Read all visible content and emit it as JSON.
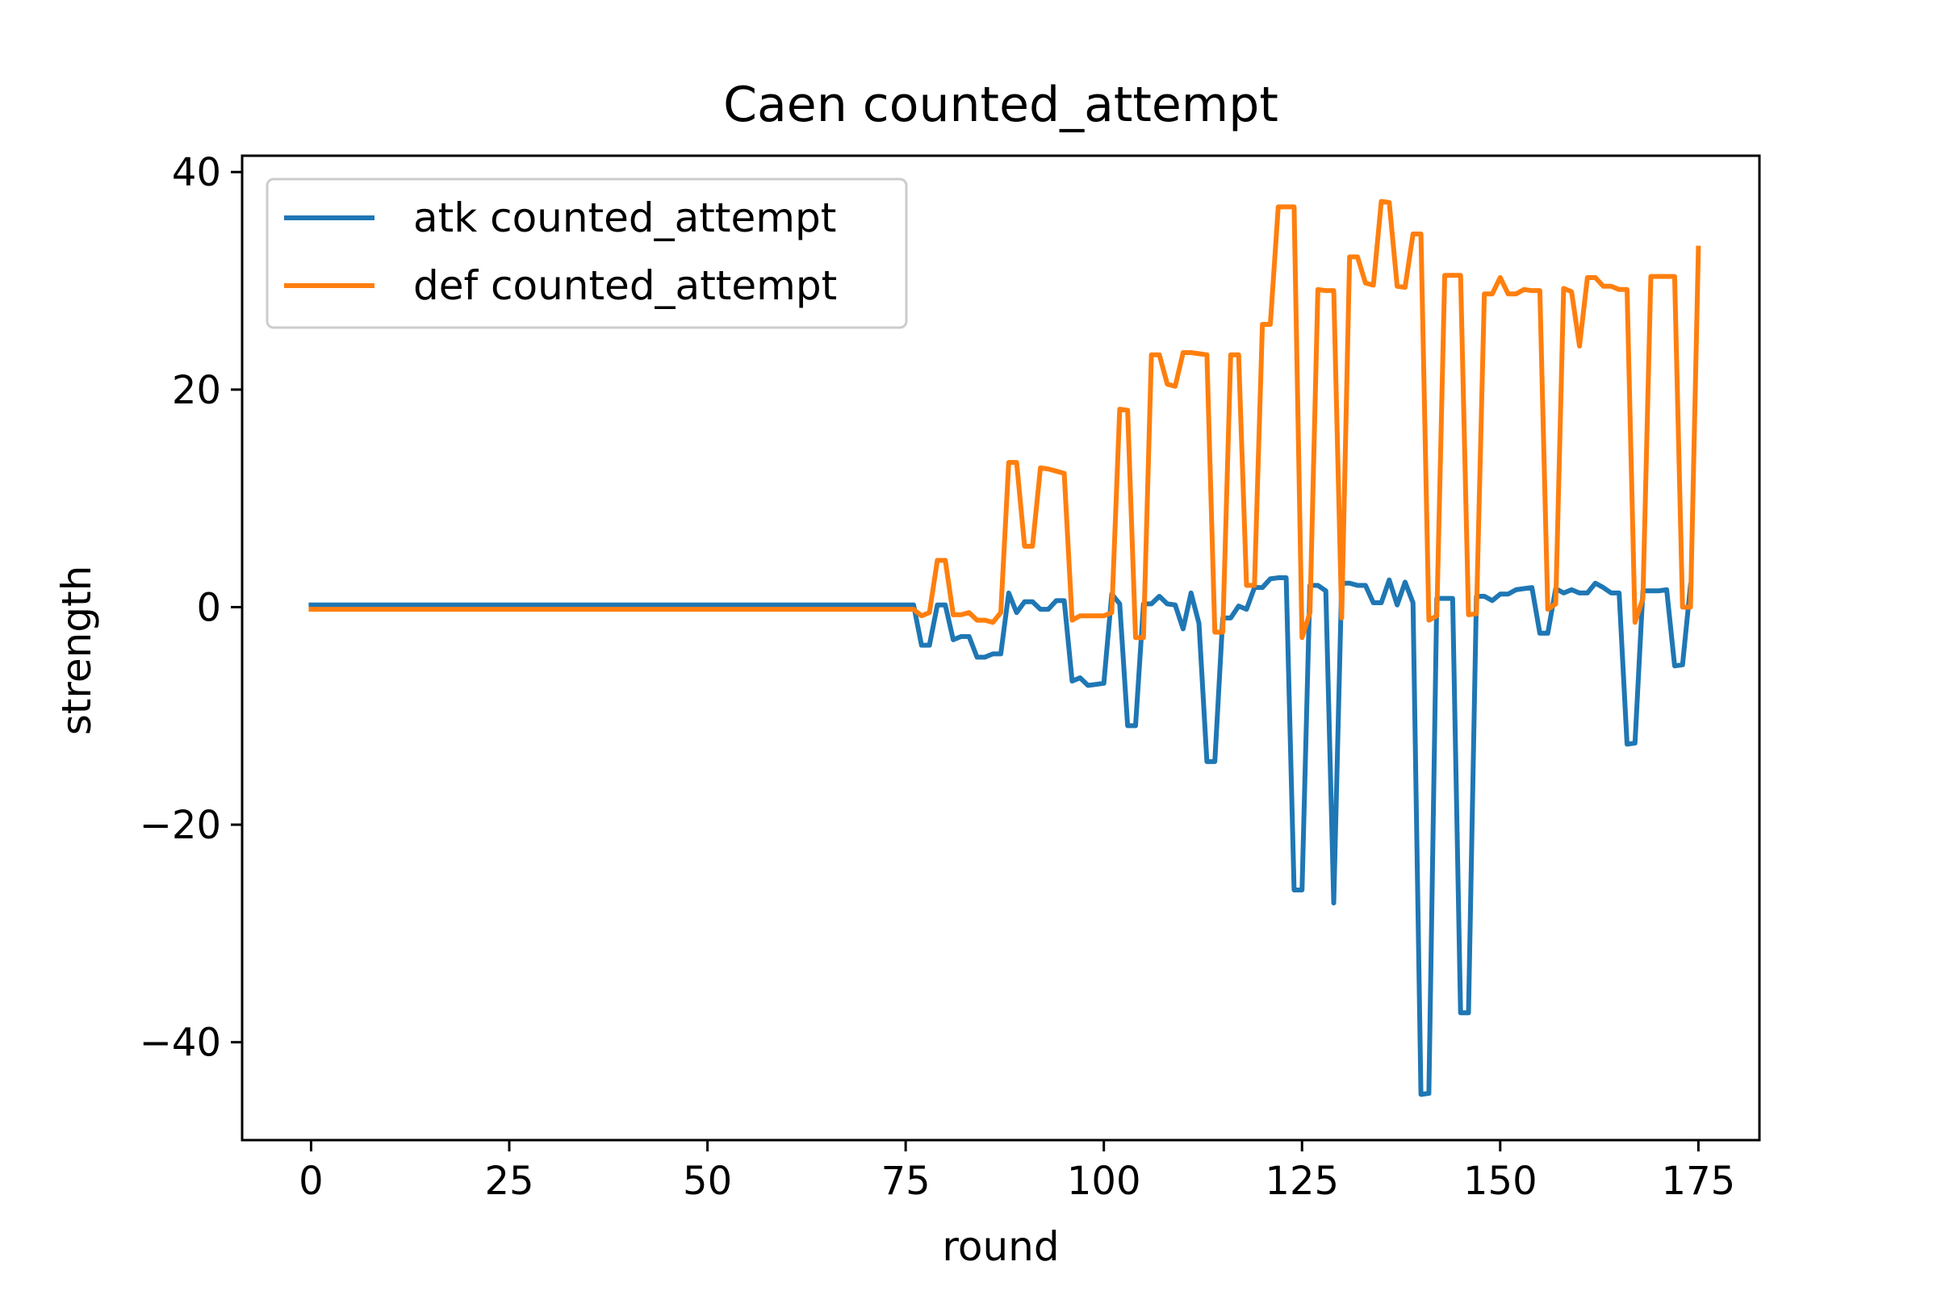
{
  "chart_data": {
    "type": "line",
    "title": "Caen counted_attempt",
    "xlabel": "round",
    "ylabel": "strength",
    "xlim": [
      -8.7,
      182.7
    ],
    "ylim": [
      -49,
      41.5
    ],
    "xticks": [
      0,
      25,
      50,
      75,
      100,
      125,
      150,
      175
    ],
    "yticks": [
      -40,
      -20,
      0,
      20,
      40
    ],
    "ytick_labels": [
      "−40",
      "−20",
      "0",
      "20",
      "40"
    ],
    "grid": false,
    "legend_position": "top-left",
    "x_start": 0,
    "series": [
      {
        "name": "atk counted_attempt",
        "color": "#1f77b4",
        "values": [
          0.2,
          0.2,
          0.2,
          0.2,
          0.2,
          0.2,
          0.2,
          0.2,
          0.2,
          0.2,
          0.2,
          0.2,
          0.2,
          0.2,
          0.2,
          0.2,
          0.2,
          0.2,
          0.2,
          0.2,
          0.2,
          0.2,
          0.2,
          0.2,
          0.2,
          0.2,
          0.2,
          0.2,
          0.2,
          0.2,
          0.2,
          0.2,
          0.2,
          0.2,
          0.2,
          0.2,
          0.2,
          0.2,
          0.2,
          0.2,
          0.2,
          0.2,
          0.2,
          0.2,
          0.2,
          0.2,
          0.2,
          0.2,
          0.2,
          0.2,
          0.2,
          0.2,
          0.2,
          0.2,
          0.2,
          0.2,
          0.2,
          0.2,
          0.2,
          0.2,
          0.2,
          0.2,
          0.2,
          0.2,
          0.2,
          0.2,
          0.2,
          0.2,
          0.2,
          0.2,
          0.2,
          0.2,
          0.2,
          0.2,
          0.2,
          0.2,
          0.2,
          -3.5,
          -3.5,
          0.2,
          0.2,
          -3,
          -2.7,
          -2.7,
          -4.6,
          -4.6,
          -4.3,
          -4.3,
          1.3,
          -0.5,
          0.5,
          0.5,
          -0.2,
          -0.2,
          0.6,
          0.6,
          -6.8,
          -6.5,
          -7.2,
          -7.1,
          -7,
          1.2,
          0.3,
          -10.9,
          -10.9,
          0.3,
          0.3,
          1,
          0.3,
          0.2,
          -2,
          1.3,
          -1.5,
          -14.2,
          -14.2,
          -1,
          -1,
          0.1,
          -0.2,
          1.8,
          1.8,
          2.6,
          2.7,
          2.7,
          -26,
          -26,
          2,
          2,
          1.5,
          -27.2,
          2.2,
          2.2,
          2,
          2,
          0.4,
          0.4,
          2.5,
          0.2,
          2.3,
          0.4,
          -44.8,
          -44.7,
          0.8,
          0.8,
          0.8,
          -37.3,
          -37.3,
          1,
          1,
          0.6,
          1.2,
          1.2,
          1.6,
          1.7,
          1.8,
          -2.4,
          -2.4,
          1.7,
          1.3,
          1.6,
          1.3,
          1.3,
          2.2,
          1.8,
          1.3,
          1.3,
          -12.6,
          -12.5,
          1.5,
          1.5,
          1.5,
          1.6,
          -5.4,
          -5.3,
          2
        ]
      },
      {
        "name": "def counted_attempt",
        "color": "#ff7f0e",
        "values": [
          -0.2,
          -0.2,
          -0.2,
          -0.2,
          -0.2,
          -0.2,
          -0.2,
          -0.2,
          -0.2,
          -0.2,
          -0.2,
          -0.2,
          -0.2,
          -0.2,
          -0.2,
          -0.2,
          -0.2,
          -0.2,
          -0.2,
          -0.2,
          -0.2,
          -0.2,
          -0.2,
          -0.2,
          -0.2,
          -0.2,
          -0.2,
          -0.2,
          -0.2,
          -0.2,
          -0.2,
          -0.2,
          -0.2,
          -0.2,
          -0.2,
          -0.2,
          -0.2,
          -0.2,
          -0.2,
          -0.2,
          -0.2,
          -0.2,
          -0.2,
          -0.2,
          -0.2,
          -0.2,
          -0.2,
          -0.2,
          -0.2,
          -0.2,
          -0.2,
          -0.2,
          -0.2,
          -0.2,
          -0.2,
          -0.2,
          -0.2,
          -0.2,
          -0.2,
          -0.2,
          -0.2,
          -0.2,
          -0.2,
          -0.2,
          -0.2,
          -0.2,
          -0.2,
          -0.2,
          -0.2,
          -0.2,
          -0.2,
          -0.2,
          -0.2,
          -0.2,
          -0.2,
          -0.2,
          -0.2,
          -0.8,
          -0.5,
          4.3,
          4.3,
          -0.7,
          -0.7,
          -0.5,
          -1.2,
          -1.2,
          -1.4,
          -0.5,
          13.3,
          13.3,
          5.6,
          5.6,
          12.8,
          12.7,
          12.5,
          12.3,
          -1.2,
          -0.8,
          -0.8,
          -0.8,
          -0.8,
          -0.5,
          18.2,
          18.1,
          -2.8,
          -2.8,
          23.2,
          23.2,
          20.5,
          20.3,
          23.4,
          23.4,
          23.3,
          23.2,
          -2.3,
          -2.3,
          23.2,
          23.2,
          2,
          2,
          26,
          26,
          36.8,
          36.8,
          36.8,
          -2.8,
          -0.5,
          29.2,
          29.1,
          29.1,
          -1,
          32.2,
          32.2,
          29.8,
          29.6,
          37.3,
          37.2,
          29.5,
          29.4,
          34.3,
          34.3,
          -1.2,
          -0.8,
          30.5,
          30.5,
          30.5,
          -0.7,
          -0.6,
          28.8,
          28.8,
          30.3,
          28.8,
          28.8,
          29.2,
          29.1,
          29.1,
          -0.2,
          0.3,
          29.3,
          29,
          24,
          30.3,
          30.3,
          29.5,
          29.5,
          29.2,
          29.2,
          -1.4,
          0.8,
          30.4,
          30.4,
          30.4,
          30.4,
          0,
          0,
          33
        ]
      }
    ]
  }
}
